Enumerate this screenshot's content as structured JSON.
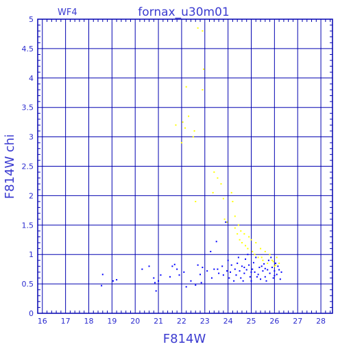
{
  "chart_data": {
    "type": "scatter",
    "title": "fornax_u30m01",
    "panel_label": "WF4",
    "xlabel": "F814W",
    "ylabel": "F814W chi",
    "xlim": [
      15.8,
      28.5
    ],
    "ylim": [
      0,
      5
    ],
    "xticks": [
      16,
      17,
      18,
      19,
      20,
      21,
      22,
      23,
      24,
      25,
      26,
      27,
      28
    ],
    "yticks": [
      0,
      0.5,
      1,
      1.5,
      2,
      2.5,
      3,
      3.5,
      4,
      4.5,
      5
    ],
    "ytick_labels": [
      "0",
      "0.5",
      "1",
      "1.5",
      "2",
      "2.5",
      "3",
      "3.5",
      "4",
      "4.5",
      "5"
    ],
    "grid": true,
    "series": [
      {
        "color": "#ffff00",
        "points": [
          [
            22.9,
            4.8
          ],
          [
            22.7,
            4.85
          ],
          [
            22.95,
            4.15
          ],
          [
            22.2,
            3.85
          ],
          [
            22.9,
            3.8
          ],
          [
            21.75,
            3.2
          ],
          [
            22.05,
            3.25
          ],
          [
            22.3,
            3.35
          ],
          [
            22.15,
            3.15
          ],
          [
            22.55,
            3.1
          ],
          [
            22.5,
            3.0
          ],
          [
            22.0,
            2.9
          ],
          [
            23.4,
            2.4
          ],
          [
            23.55,
            2.3
          ],
          [
            23.7,
            2.2
          ],
          [
            23.35,
            2.05
          ],
          [
            23.8,
            1.95
          ],
          [
            24.15,
            2.05
          ],
          [
            24.2,
            1.9
          ],
          [
            22.6,
            1.9
          ],
          [
            23.85,
            1.6
          ],
          [
            23.95,
            1.55
          ],
          [
            24.3,
            1.65
          ],
          [
            24.45,
            1.5
          ],
          [
            24.55,
            1.4
          ],
          [
            24.3,
            1.45
          ],
          [
            24.7,
            1.35
          ],
          [
            24.9,
            1.3
          ],
          [
            25.0,
            1.25
          ],
          [
            25.2,
            1.2
          ],
          [
            24.6,
            1.2
          ],
          [
            24.75,
            1.15
          ],
          [
            25.05,
            1.05
          ],
          [
            25.4,
            1.1
          ],
          [
            25.6,
            1.05
          ],
          [
            25.8,
            1.0
          ],
          [
            25.3,
            0.95
          ],
          [
            25.9,
            0.9
          ],
          [
            26.1,
            0.95
          ],
          [
            26.2,
            0.85
          ],
          [
            25.5,
            0.9
          ],
          [
            25.7,
            0.85
          ],
          [
            26.0,
            0.8
          ],
          [
            24.5,
            1.25
          ],
          [
            24.85,
            1.1
          ],
          [
            25.15,
            1.0
          ],
          [
            25.45,
            0.95
          ],
          [
            25.95,
            0.88
          ],
          [
            26.05,
            0.82
          ],
          [
            24.4,
            1.35
          ]
        ]
      },
      {
        "color": "#0000ff",
        "points": [
          [
            18.6,
            0.66
          ],
          [
            18.55,
            0.47
          ],
          [
            19.05,
            0.55
          ],
          [
            19.2,
            0.57
          ],
          [
            20.3,
            0.75
          ],
          [
            20.6,
            0.8
          ],
          [
            20.8,
            0.6
          ],
          [
            20.85,
            0.52
          ],
          [
            21.0,
            0.55
          ],
          [
            20.9,
            0.38
          ],
          [
            21.1,
            0.65
          ],
          [
            21.5,
            0.62
          ],
          [
            21.6,
            0.8
          ],
          [
            21.7,
            0.83
          ],
          [
            21.8,
            0.75
          ],
          [
            21.9,
            0.65
          ],
          [
            22.1,
            0.7
          ],
          [
            22.2,
            0.45
          ],
          [
            22.4,
            0.55
          ],
          [
            22.6,
            0.48
          ],
          [
            22.7,
            0.82
          ],
          [
            22.8,
            0.66
          ],
          [
            22.85,
            0.52
          ],
          [
            22.9,
            0.78
          ],
          [
            23.1,
            0.72
          ],
          [
            23.25,
            1.05
          ],
          [
            23.3,
            0.6
          ],
          [
            23.4,
            0.75
          ],
          [
            23.5,
            1.22
          ],
          [
            23.6,
            0.68
          ],
          [
            23.75,
            0.8
          ],
          [
            23.9,
            1.55
          ],
          [
            23.95,
            0.72
          ],
          [
            24.0,
            0.9
          ],
          [
            24.1,
            0.7
          ],
          [
            24.15,
            0.82
          ],
          [
            24.3,
            0.75
          ],
          [
            24.35,
            0.65
          ],
          [
            24.4,
            0.85
          ],
          [
            24.5,
            0.72
          ],
          [
            24.55,
            0.6
          ],
          [
            24.6,
            0.8
          ],
          [
            24.7,
            0.68
          ],
          [
            24.75,
            0.92
          ],
          [
            24.8,
            0.74
          ],
          [
            24.9,
            0.82
          ],
          [
            24.95,
            0.62
          ],
          [
            25.0,
            0.55
          ],
          [
            25.05,
            0.75
          ],
          [
            25.1,
            0.86
          ],
          [
            25.15,
            0.7
          ],
          [
            25.2,
            0.95
          ],
          [
            25.3,
            0.66
          ],
          [
            25.35,
            0.78
          ],
          [
            25.4,
            0.58
          ],
          [
            25.5,
            0.72
          ],
          [
            25.55,
            0.84
          ],
          [
            25.6,
            0.62
          ],
          [
            25.7,
            0.74
          ],
          [
            25.75,
            0.9
          ],
          [
            25.8,
            0.68
          ],
          [
            25.9,
            0.78
          ],
          [
            25.95,
            0.6
          ],
          [
            26.0,
            0.72
          ],
          [
            26.05,
            0.85
          ],
          [
            26.1,
            0.66
          ],
          [
            26.2,
            0.74
          ],
          [
            26.25,
            0.58
          ],
          [
            26.3,
            0.7
          ],
          [
            24.25,
            0.55
          ],
          [
            24.45,
            0.95
          ],
          [
            24.65,
            0.55
          ],
          [
            24.85,
            1.0
          ],
          [
            25.25,
            0.62
          ],
          [
            25.45,
            0.8
          ],
          [
            25.65,
            0.55
          ],
          [
            25.85,
            0.95
          ],
          [
            26.15,
            0.8
          ],
          [
            23.8,
            0.65
          ],
          [
            23.55,
            0.75
          ],
          [
            24.05,
            0.6
          ],
          [
            24.7,
            0.78
          ],
          [
            25.0,
            0.7
          ],
          [
            25.6,
            0.76
          ],
          [
            26.0,
            0.64
          ]
        ]
      }
    ]
  }
}
